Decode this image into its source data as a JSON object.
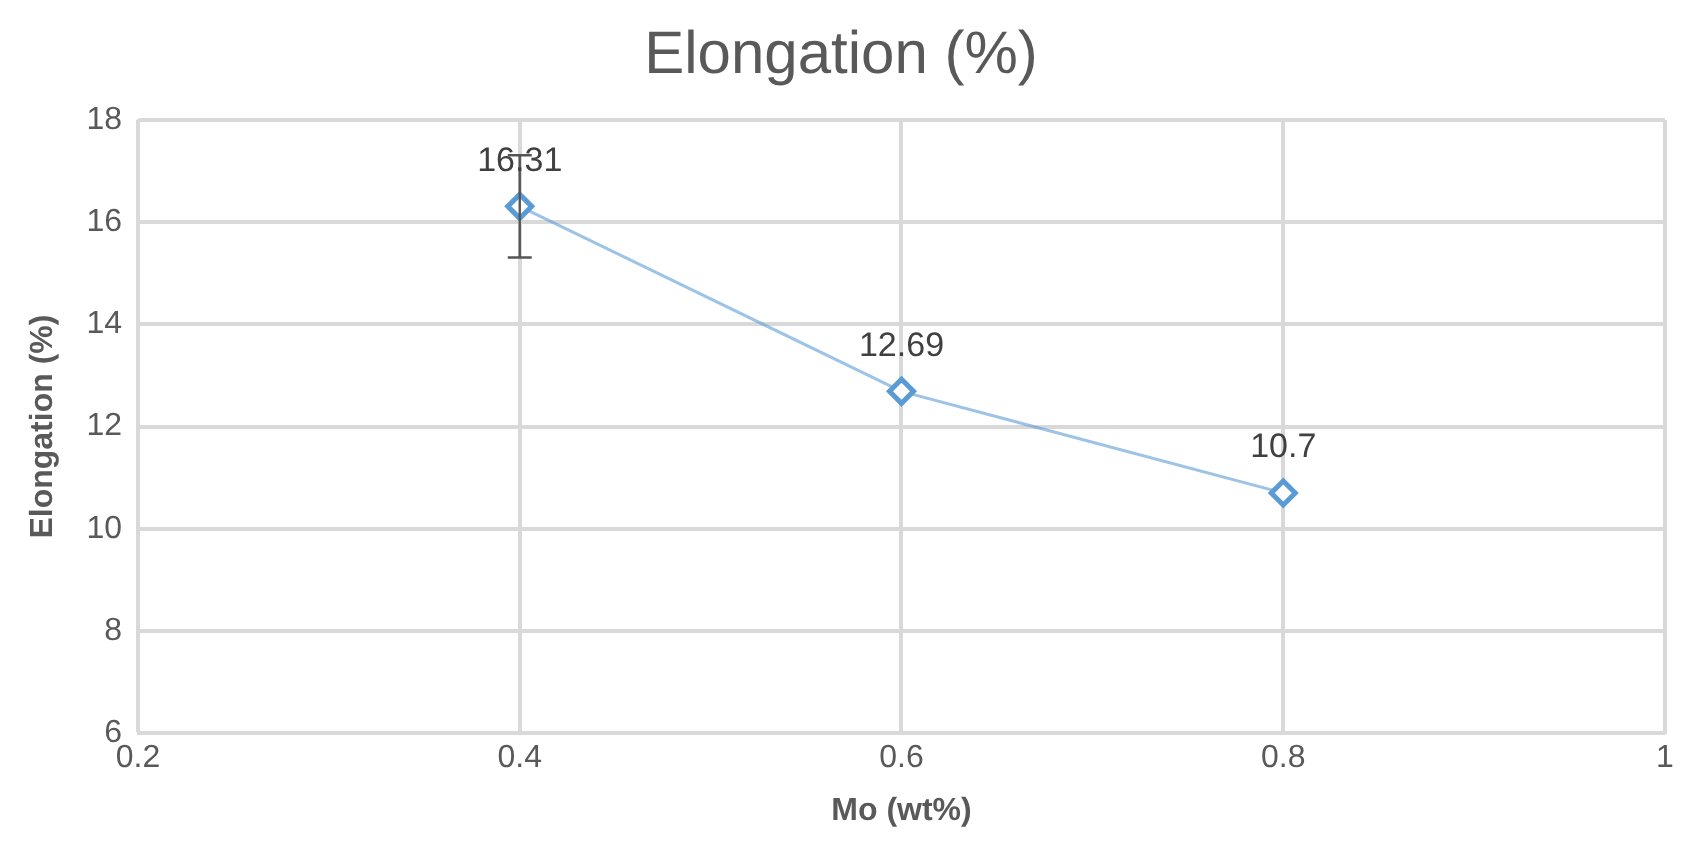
{
  "chart_data": {
    "type": "line",
    "title": "Elongation (%)",
    "xlabel": "Mo (wt%)",
    "ylabel": "Elongation (%)",
    "x": [
      0.4,
      0.6,
      0.8
    ],
    "series": [
      {
        "color": "#5b9bd5",
        "values": [
          16.31,
          12.69,
          10.7
        ],
        "errors": [
          1,
          null,
          null
        ]
      }
    ],
    "xlim": [
      0.2,
      1
    ],
    "xticks": [
      0.2,
      0.4,
      0.6,
      0.8,
      1
    ],
    "ylim": [
      6,
      18
    ],
    "yticks": [
      6,
      8,
      10,
      12,
      14,
      16,
      18
    ],
    "grid": true,
    "legend": false,
    "marker": "diamond",
    "line_style": "solid",
    "data_labels": true
  }
}
